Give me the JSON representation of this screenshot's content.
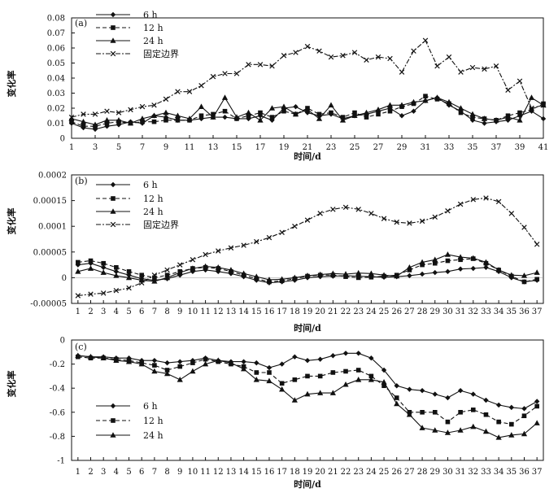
{
  "chart_data": [
    {
      "type": "line",
      "panel_label": "(a)",
      "ylabel": "变化率",
      "xlabel": "时间/d",
      "ylim": [
        0,
        0.08
      ],
      "yticks": [
        0,
        0.01,
        0.02,
        0.03,
        0.04,
        0.05,
        0.06,
        0.07,
        0.08
      ],
      "ytick_labels": [
        "0",
        "0.01",
        "0.02",
        "0.03",
        "0.04",
        "0.05",
        "0.06",
        "0.07",
        "0.08"
      ],
      "x": [
        1,
        2,
        3,
        4,
        5,
        6,
        7,
        8,
        9,
        10,
        11,
        12,
        13,
        14,
        15,
        16,
        17,
        18,
        19,
        20,
        21,
        22,
        23,
        24,
        25,
        26,
        27,
        28,
        29,
        30,
        31,
        32,
        33,
        34,
        35,
        36,
        37,
        38,
        39,
        40,
        41
      ],
      "xtick_labels": [
        "1",
        "3",
        "5",
        "7",
        "9",
        "11",
        "13",
        "15",
        "17",
        "19",
        "21",
        "23",
        "25",
        "27",
        "29",
        "31",
        "33",
        "35",
        "37",
        "39",
        "41"
      ],
      "xticks": [
        1,
        3,
        5,
        7,
        9,
        11,
        13,
        15,
        17,
        19,
        21,
        23,
        25,
        27,
        29,
        31,
        33,
        35,
        37,
        39,
        41
      ],
      "series": [
        {
          "name": "6 h",
          "marker": "diamond",
          "dash": "solid",
          "values": [
            0.01,
            0.007,
            0.006,
            0.008,
            0.009,
            0.011,
            0.01,
            0.015,
            0.014,
            0.012,
            0.012,
            0.013,
            0.014,
            0.014,
            0.013,
            0.013,
            0.015,
            0.012,
            0.02,
            0.021,
            0.017,
            0.015,
            0.016,
            0.013,
            0.015,
            0.016,
            0.018,
            0.02,
            0.015,
            0.018,
            0.025,
            0.027,
            0.022,
            0.018,
            0.012,
            0.01,
            0.011,
            0.012,
            0.015,
            0.018,
            0.013
          ]
        },
        {
          "name": "12 h",
          "marker": "square",
          "dash": "dash",
          "values": [
            0.011,
            0.008,
            0.008,
            0.01,
            0.011,
            0.01,
            0.011,
            0.011,
            0.012,
            0.012,
            0.012,
            0.015,
            0.016,
            0.018,
            0.013,
            0.015,
            0.017,
            0.014,
            0.018,
            0.016,
            0.02,
            0.016,
            0.017,
            0.014,
            0.017,
            0.014,
            0.016,
            0.018,
            0.021,
            0.023,
            0.028,
            0.026,
            0.023,
            0.017,
            0.014,
            0.013,
            0.012,
            0.015,
            0.017,
            0.019,
            0.023
          ]
        },
        {
          "name": "24 h",
          "marker": "triangle",
          "dash": "solid",
          "values": [
            0.013,
            0.011,
            0.009,
            0.012,
            0.012,
            0.01,
            0.013,
            0.015,
            0.017,
            0.015,
            0.013,
            0.021,
            0.014,
            0.027,
            0.014,
            0.017,
            0.012,
            0.02,
            0.021,
            0.016,
            0.019,
            0.013,
            0.022,
            0.012,
            0.015,
            0.017,
            0.019,
            0.022,
            0.022,
            0.024,
            0.025,
            0.027,
            0.024,
            0.02,
            0.016,
            0.013,
            0.012,
            0.014,
            0.012,
            0.027,
            0.022
          ]
        },
        {
          "name": "固定边界",
          "marker": "x",
          "dash": "dashdot",
          "values": [
            0.014,
            0.016,
            0.016,
            0.018,
            0.017,
            0.019,
            0.021,
            0.022,
            0.026,
            0.031,
            0.031,
            0.035,
            0.041,
            0.043,
            0.043,
            0.049,
            0.049,
            0.048,
            0.055,
            0.057,
            0.061,
            0.058,
            0.054,
            0.055,
            0.057,
            0.052,
            0.054,
            0.053,
            0.044,
            0.058,
            0.065,
            0.048,
            0.054,
            0.044,
            0.047,
            0.046,
            0.048,
            0.032,
            0.038,
            0.02,
            0.022
          ]
        }
      ]
    },
    {
      "type": "line",
      "panel_label": "(b)",
      "ylabel": "变化率",
      "xlabel": "时间/d",
      "ylim": [
        -5e-05,
        0.0002
      ],
      "yticks": [
        -5e-05,
        0,
        5e-05,
        0.0001,
        0.00015,
        0.0002
      ],
      "ytick_labels": [
        "-0.00005",
        "0",
        "0.00005",
        "0.0001",
        "0.00015",
        "0.0002"
      ],
      "x": [
        1,
        2,
        3,
        4,
        5,
        6,
        7,
        8,
        9,
        10,
        11,
        12,
        13,
        14,
        15,
        16,
        17,
        18,
        19,
        20,
        21,
        22,
        23,
        24,
        25,
        26,
        27,
        28,
        29,
        30,
        31,
        32,
        33,
        34,
        35,
        36,
        37
      ],
      "xticks": [
        1,
        2,
        3,
        4,
        5,
        6,
        7,
        8,
        9,
        10,
        11,
        12,
        13,
        14,
        15,
        16,
        17,
        18,
        19,
        20,
        21,
        22,
        23,
        24,
        25,
        26,
        27,
        28,
        29,
        30,
        31,
        32,
        33,
        34,
        35,
        36,
        37
      ],
      "xtick_labels": [
        "1",
        "2",
        "3",
        "4",
        "5",
        "6",
        "7",
        "8",
        "9",
        "10",
        "11",
        "12",
        "13",
        "14",
        "15",
        "16",
        "17",
        "18",
        "19",
        "20",
        "21",
        "22",
        "23",
        "24",
        "25",
        "26",
        "27",
        "28",
        "29",
        "30",
        "31",
        "32",
        "33",
        "34",
        "35",
        "36",
        "37"
      ],
      "series": [
        {
          "name": "6 h",
          "marker": "diamond",
          "dash": "solid",
          "values": [
            2.5e-05,
            2.8e-05,
            2e-05,
            1.2e-05,
            5e-06,
            -2e-06,
            -5e-06,
            -2e-06,
            5e-06,
            1.2e-05,
            1.5e-05,
            1.2e-05,
            8e-06,
            2e-06,
            -5e-06,
            -1e-05,
            -8e-06,
            -5e-06,
            0.0,
            2e-06,
            3e-06,
            4e-06,
            3e-06,
            2e-06,
            1e-06,
            2e-06,
            4e-06,
            7e-06,
            1e-05,
            1.2e-05,
            1.7e-05,
            1.8e-05,
            2e-05,
            1.2e-05,
            0.0,
            -8e-06,
            -5e-06
          ]
        },
        {
          "name": "12 h",
          "marker": "square",
          "dash": "dash",
          "values": [
            3e-05,
            3.3e-05,
            2.8e-05,
            2e-05,
            1.2e-05,
            5e-06,
            0.0,
            5e-06,
            1.2e-05,
            1.8e-05,
            2e-05,
            1.8e-05,
            1.2e-05,
            5e-06,
            -2e-06,
            -8e-06,
            -6e-06,
            -2e-06,
            3e-06,
            5e-06,
            5e-06,
            2e-06,
            0.0,
            1e-06,
            3e-06,
            5e-06,
            1.5e-05,
            2.5e-05,
            2.8e-05,
            3.3e-05,
            3.5e-05,
            3.7e-05,
            2.8e-05,
            1.5e-05,
            3e-06,
            -8e-06,
            -3e-06
          ]
        },
        {
          "name": "24 h",
          "marker": "triangle",
          "dash": "solid",
          "values": [
            1.2e-05,
            1.8e-05,
            1e-05,
            4e-06,
            0.0,
            -5e-06,
            -7e-06,
            0.0,
            1e-05,
            1.8e-05,
            2.2e-05,
            2e-05,
            1.5e-05,
            8e-06,
            2e-06,
            -4e-06,
            -3e-06,
            0.0,
            4e-06,
            6e-06,
            8e-06,
            7e-06,
            9e-06,
            8e-06,
            5e-06,
            3e-06,
            2e-05,
            3e-05,
            3.5e-05,
            4.5e-05,
            4e-05,
            3.8e-05,
            3e-05,
            1.5e-05,
            5e-06,
            4e-06,
            1e-05
          ]
        },
        {
          "name": "固定边界",
          "marker": "x",
          "dash": "dashdot",
          "values": [
            -3.5e-05,
            -3.2e-05,
            -3e-05,
            -2.5e-05,
            -2e-05,
            -1e-05,
            5e-06,
            1.5e-05,
            2.5e-05,
            3.5e-05,
            4.5e-05,
            5.2e-05,
            5.8e-05,
            6.3e-05,
            7e-05,
            7.8e-05,
            8.8e-05,
            0.0001,
            0.000112,
            0.000125,
            0.000133,
            0.000137,
            0.000133,
            0.000125,
            0.000115,
            0.000108,
            0.000106,
            0.00011,
            0.000118,
            0.00013,
            0.000143,
            0.000152,
            0.000155,
            0.000148,
            0.000125,
            9.8e-05,
            6.5e-05
          ]
        }
      ]
    },
    {
      "type": "line",
      "panel_label": "(c)",
      "ylabel": "变化率",
      "xlabel": "时间/d",
      "ylim": [
        -1,
        0
      ],
      "yticks": [
        -1,
        -0.8,
        -0.6,
        -0.4,
        -0.2,
        0
      ],
      "ytick_labels": [
        "-1",
        "-0.8",
        "-0.6",
        "-0.4",
        "-0.2",
        "0"
      ],
      "x": [
        1,
        2,
        3,
        4,
        5,
        6,
        7,
        8,
        9,
        10,
        11,
        12,
        13,
        14,
        15,
        16,
        17,
        18,
        19,
        20,
        21,
        22,
        23,
        24,
        25,
        26,
        27,
        28,
        29,
        30,
        31,
        32,
        33,
        34,
        35,
        36,
        37
      ],
      "xticks": [
        1,
        2,
        3,
        4,
        5,
        6,
        7,
        8,
        9,
        10,
        11,
        12,
        13,
        14,
        15,
        16,
        17,
        18,
        19,
        20,
        21,
        22,
        23,
        24,
        25,
        26,
        27,
        28,
        29,
        30,
        31,
        32,
        33,
        34,
        35,
        36,
        37
      ],
      "xtick_labels": [
        "1",
        "2",
        "3",
        "4",
        "5",
        "6",
        "7",
        "8",
        "9",
        "10",
        "11",
        "12",
        "13",
        "14",
        "15",
        "16",
        "17",
        "18",
        "19",
        "20",
        "21",
        "22",
        "23",
        "24",
        "25",
        "26",
        "27",
        "28",
        "29",
        "30",
        "31",
        "32",
        "33",
        "34",
        "35",
        "36",
        "37"
      ],
      "series": [
        {
          "name": "6 h",
          "marker": "diamond",
          "dash": "solid",
          "values": [
            -0.13,
            -0.14,
            -0.14,
            -0.15,
            -0.15,
            -0.17,
            -0.17,
            -0.19,
            -0.18,
            -0.17,
            -0.15,
            -0.17,
            -0.18,
            -0.18,
            -0.19,
            -0.23,
            -0.2,
            -0.14,
            -0.17,
            -0.16,
            -0.13,
            -0.11,
            -0.11,
            -0.15,
            -0.25,
            -0.38,
            -0.41,
            -0.42,
            -0.45,
            -0.48,
            -0.42,
            -0.45,
            -0.5,
            -0.54,
            -0.56,
            -0.57,
            -0.51
          ]
        },
        {
          "name": "12 h",
          "marker": "square",
          "dash": "dash",
          "values": [
            -0.14,
            -0.15,
            -0.15,
            -0.16,
            -0.17,
            -0.19,
            -0.21,
            -0.25,
            -0.22,
            -0.19,
            -0.16,
            -0.18,
            -0.2,
            -0.22,
            -0.27,
            -0.27,
            -0.36,
            -0.33,
            -0.3,
            -0.3,
            -0.27,
            -0.26,
            -0.25,
            -0.3,
            -0.38,
            -0.48,
            -0.6,
            -0.6,
            -0.6,
            -0.68,
            -0.6,
            -0.58,
            -0.62,
            -0.68,
            -0.7,
            -0.63,
            -0.55
          ]
        },
        {
          "name": "24 h",
          "marker": "triangle",
          "dash": "solid",
          "values": [
            -0.13,
            -0.14,
            -0.15,
            -0.17,
            -0.18,
            -0.2,
            -0.26,
            -0.28,
            -0.33,
            -0.26,
            -0.2,
            -0.17,
            -0.19,
            -0.24,
            -0.33,
            -0.34,
            -0.41,
            -0.5,
            -0.45,
            -0.44,
            -0.44,
            -0.37,
            -0.33,
            -0.33,
            -0.35,
            -0.53,
            -0.62,
            -0.73,
            -0.75,
            -0.77,
            -0.75,
            -0.72,
            -0.76,
            -0.81,
            -0.79,
            -0.78,
            -0.69
          ]
        }
      ]
    }
  ]
}
